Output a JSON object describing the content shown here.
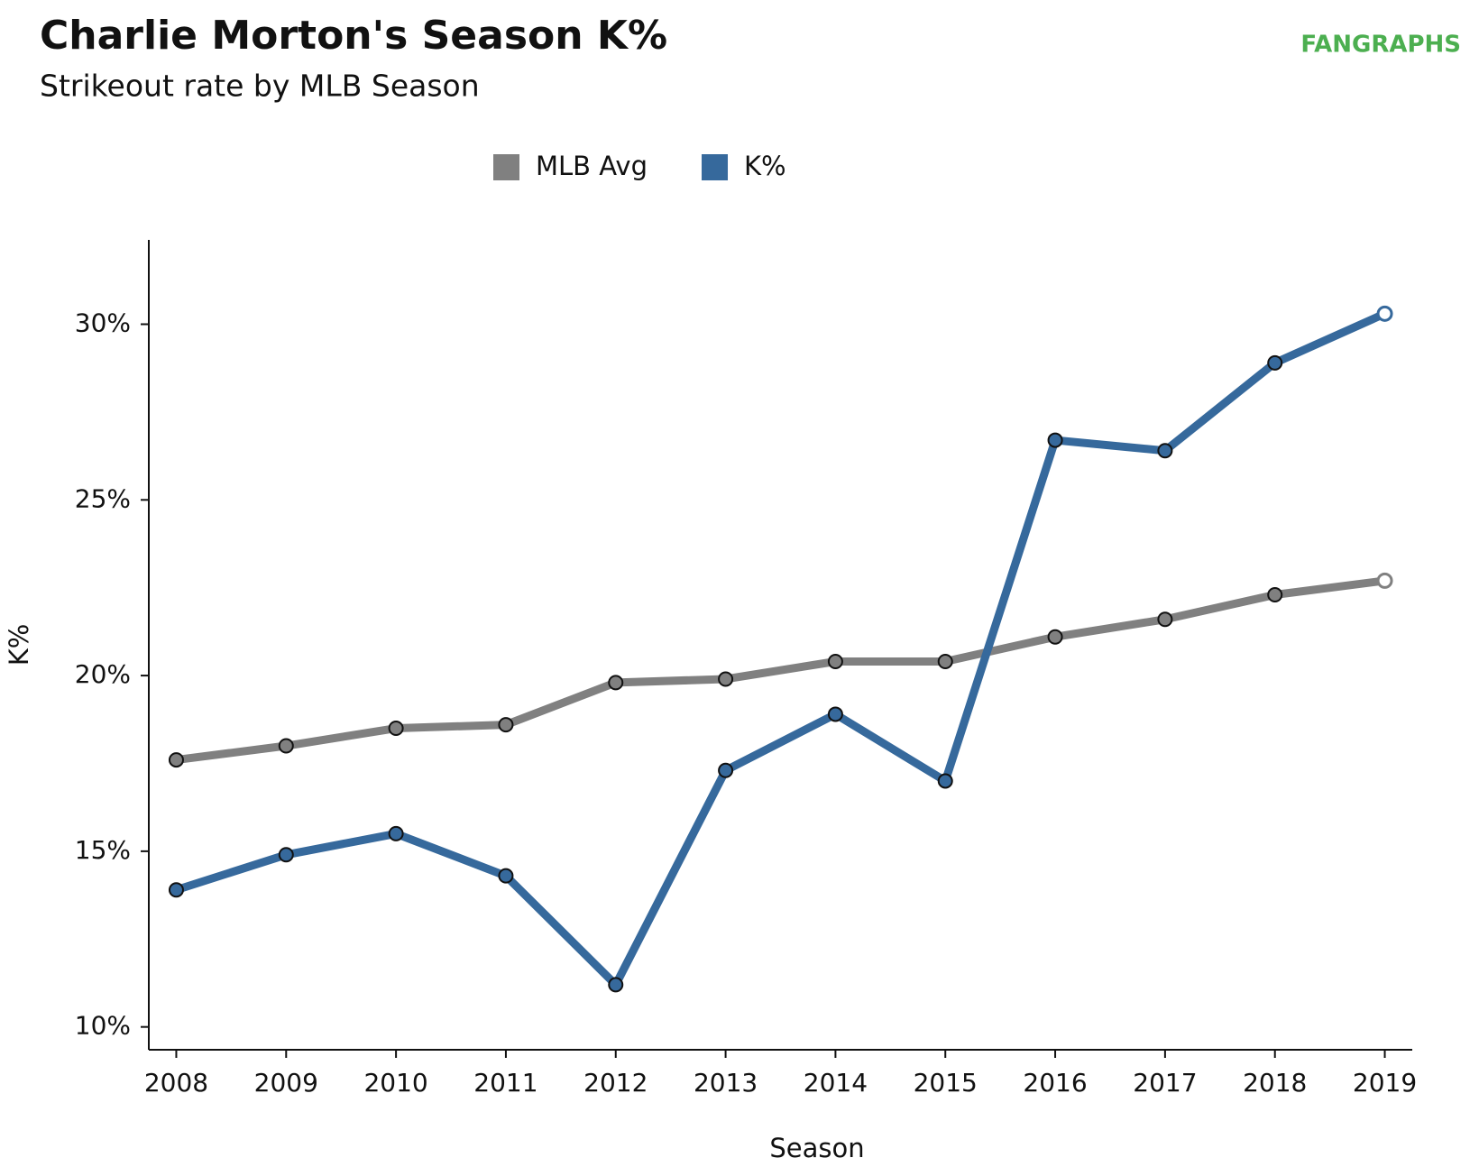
{
  "chart_data": {
    "type": "line",
    "title": "Charlie Morton's Season K%",
    "subtitle": "Strikeout rate by MLB Season",
    "logo": "FANGRAPHS",
    "x_label": "Season",
    "y_label": "K%",
    "x": [
      2008,
      2009,
      2010,
      2011,
      2012,
      2013,
      2014,
      2015,
      2016,
      2017,
      2018,
      2019
    ],
    "xticks": [
      2008,
      2009,
      2010,
      2011,
      2012,
      2013,
      2014,
      2015,
      2016,
      2017,
      2018,
      2019
    ],
    "xlim": [
      2007.75,
      2019.25
    ],
    "ylim": [
      9.35,
      32.4
    ],
    "yticks": [
      {
        "value": 10,
        "label": "10%"
      },
      {
        "value": 15,
        "label": "15%"
      },
      {
        "value": 20,
        "label": "20%"
      },
      {
        "value": 25,
        "label": "25%"
      },
      {
        "value": 30,
        "label": "30%"
      }
    ],
    "series": [
      {
        "name": "MLB Avg",
        "color": "#808080",
        "values": [
          17.6,
          18.0,
          18.5,
          18.6,
          19.8,
          19.9,
          20.4,
          20.4,
          21.1,
          21.6,
          22.3,
          22.7
        ]
      },
      {
        "name": "K%",
        "color": "#36699c",
        "values": [
          13.9,
          14.9,
          15.5,
          14.3,
          11.2,
          17.3,
          18.9,
          17.0,
          26.7,
          26.4,
          28.9,
          30.3
        ]
      }
    ]
  }
}
